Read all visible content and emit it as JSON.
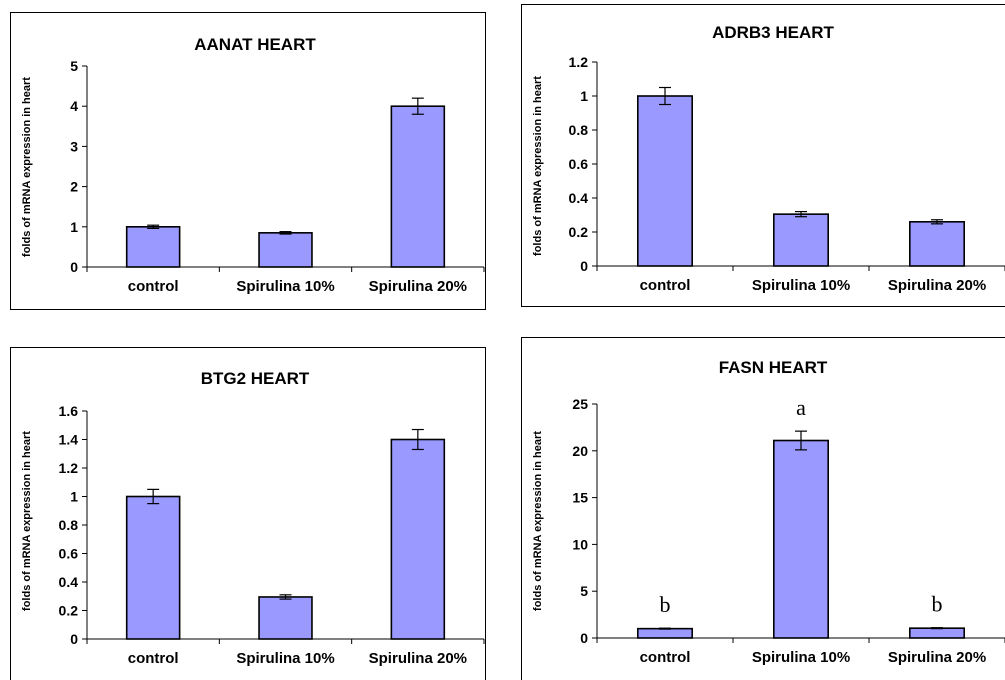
{
  "colors": {
    "bar_fill": "#9999ff",
    "bar_stroke": "#000000",
    "background": "#ffffff"
  },
  "chart_data": [
    {
      "type": "bar",
      "title": "AANAT HEART",
      "ylabel": "folds of mRNA expression in heart",
      "categories": [
        "control",
        "Spirulina 10%",
        "Spirulina 20%"
      ],
      "values": [
        1.0,
        0.85,
        4.0
      ],
      "errors": [
        0.04,
        0.03,
        0.2
      ],
      "ylim": [
        0,
        5
      ],
      "yticks": [
        "0",
        "1",
        "2",
        "3",
        "4",
        "5"
      ],
      "annotations": [
        "",
        "",
        ""
      ],
      "grid": false
    },
    {
      "type": "bar",
      "title": "ADRB3 HEART",
      "ylabel": "folds of mRNA expression in heart",
      "categories": [
        "control",
        "Spirulina 10%",
        "Spirulina 20%"
      ],
      "values": [
        1.0,
        0.305,
        0.26
      ],
      "errors": [
        0.05,
        0.015,
        0.012
      ],
      "ylim": [
        0,
        1.2
      ],
      "yticks": [
        "0",
        "0.2",
        "0.4",
        "0.6",
        "0.8",
        "1",
        "1.2"
      ],
      "annotations": [
        "",
        "",
        ""
      ],
      "grid": false
    },
    {
      "type": "bar",
      "title": "BTG2 HEART",
      "ylabel": "folds of mRNA expression in heart",
      "categories": [
        "control",
        "Spirulina 10%",
        "Spirulina 20%"
      ],
      "values": [
        1.0,
        0.295,
        1.4
      ],
      "errors": [
        0.05,
        0.015,
        0.07
      ],
      "ylim": [
        0,
        1.6
      ],
      "yticks": [
        "0",
        "0.2",
        "0.4",
        "0.6",
        "0.8",
        "1",
        "1.2",
        "1.4",
        "1.6"
      ],
      "annotations": [
        "",
        "",
        ""
      ],
      "grid": false
    },
    {
      "type": "bar",
      "title": "FASN HEART",
      "ylabel": "folds of mRNA expression in heart",
      "categories": [
        "control",
        "Spirulina 10%",
        "Spirulina 20%"
      ],
      "values": [
        1.0,
        21.1,
        1.05
      ],
      "errors": [
        0.05,
        1.0,
        0.05
      ],
      "ylim": [
        0,
        25
      ],
      "yticks": [
        "0",
        "5",
        "10",
        "15",
        "20",
        "25"
      ],
      "annotations": [
        "b",
        "a",
        "b"
      ],
      "grid": false
    }
  ]
}
